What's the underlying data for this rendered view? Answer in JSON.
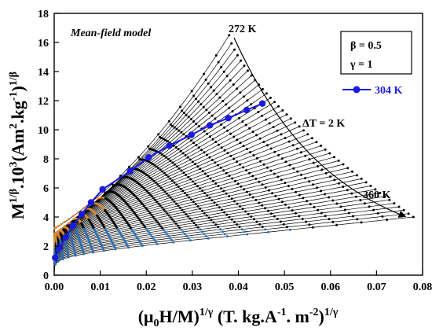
{
  "chart_data": {
    "type": "line",
    "title": "",
    "xlabel": "(μ0H/M)^1/γ (T. kg.A^-1. m^-2)^1/γ",
    "ylabel": "M^1/β.10^3(Am^2.kg^-1)^1/β",
    "xlim": [
      0.0,
      0.08
    ],
    "ylim": [
      0,
      18
    ],
    "x_ticks": [
      "0.00",
      "0.01",
      "0.02",
      "0.03",
      "0.04",
      "0.05",
      "0.06",
      "0.07",
      "0.08"
    ],
    "y_ticks": [
      "0",
      "2",
      "4",
      "6",
      "8",
      "10",
      "12",
      "14",
      "16",
      "18"
    ],
    "grid": false,
    "legend_position": "top-right",
    "annotations": {
      "model": "Mean-field model",
      "beta": "β = 0.5",
      "gamma": "γ = 1",
      "delta_t": "ΔT = 2 K",
      "t_low": "272 K",
      "t_high": "360 K"
    },
    "temperature_range": {
      "start": 272,
      "end": 360,
      "step": 2
    },
    "highlight_series": {
      "name": "304 K",
      "color": "#1a1adf",
      "x": [
        0.0002,
        0.0012,
        0.0025,
        0.004,
        0.006,
        0.008,
        0.0105,
        0.0165,
        0.0205,
        0.025,
        0.0298,
        0.0338,
        0.0378,
        0.0418,
        0.0452
      ],
      "y": [
        1.2,
        1.9,
        2.6,
        3.4,
        4.2,
        5.0,
        5.9,
        7.15,
        8.1,
        8.9,
        9.65,
        10.3,
        10.8,
        11.35,
        11.8
      ]
    },
    "colors": {
      "low_field": "#2b6fb5",
      "high_field": "#e08a2c",
      "curves": "#000000",
      "highlight": "#1a1adf"
    }
  }
}
